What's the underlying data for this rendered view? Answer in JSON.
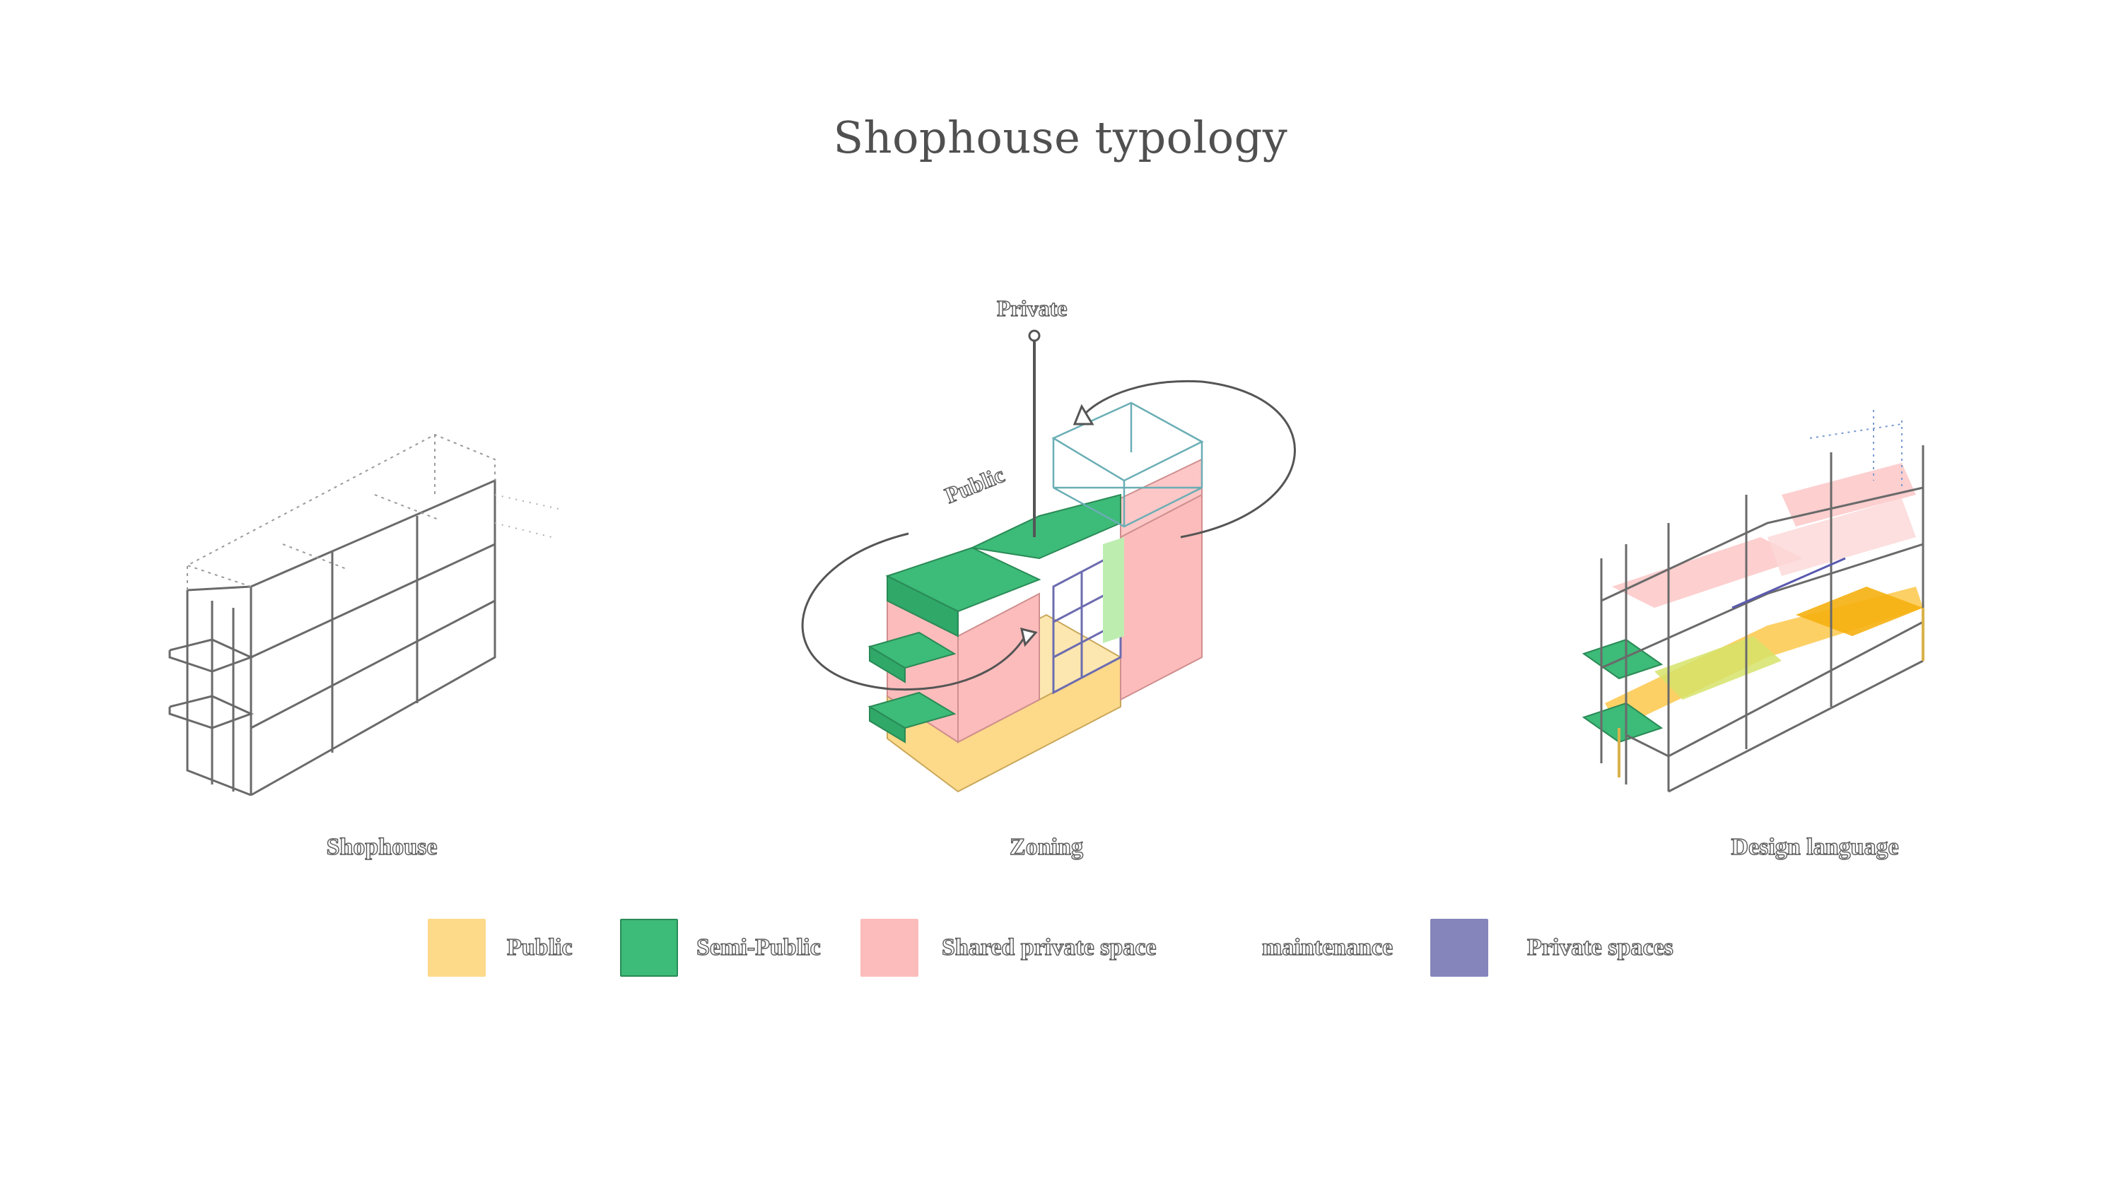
{
  "title": "Shophouse typology",
  "diagrams": [
    {
      "caption": "Shophouse"
    },
    {
      "caption": "Zoning"
    },
    {
      "caption": "Design language"
    }
  ],
  "annotations": {
    "private_label": "Private",
    "public_label": "Public"
  },
  "legend": [
    {
      "label": "Public",
      "color": "#fdd98a"
    },
    {
      "label": "Semi-Public",
      "color": "#3dbb78"
    },
    {
      "label": "Shared private space",
      "color": "#fdbcbc"
    },
    {
      "label": "maintenance",
      "color": "#ffffff"
    },
    {
      "label": "Private spaces",
      "color": "#8585bb"
    }
  ]
}
